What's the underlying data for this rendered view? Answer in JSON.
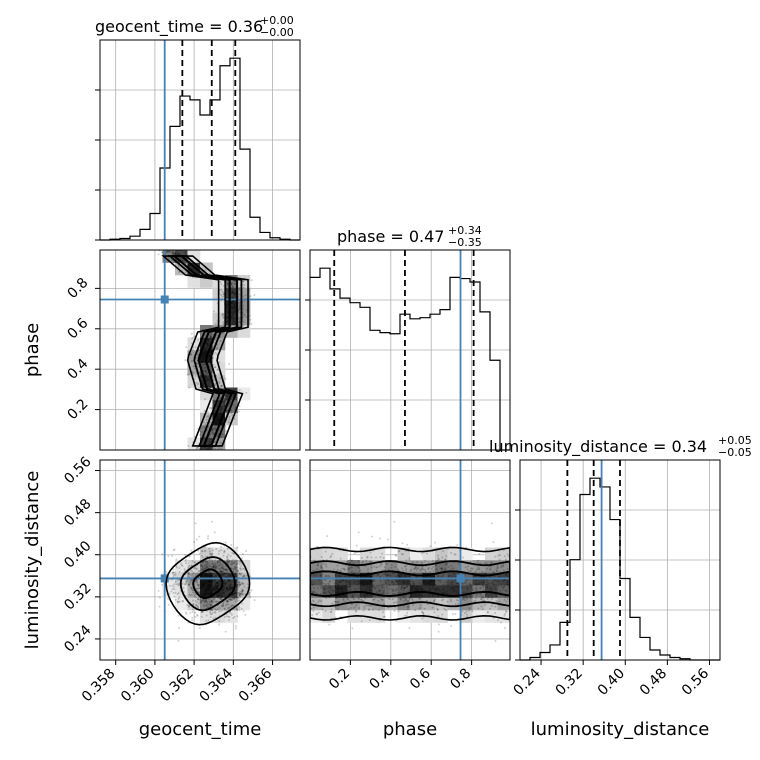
{
  "chart_data": {
    "type": "corner",
    "parameters": [
      "geocent_time",
      "phase",
      "luminosity_distance"
    ],
    "truths": {
      "geocent_time": 0.3605,
      "phase": 0.745,
      "luminosity_distance": 0.355
    },
    "truth_color": "#4682b4",
    "titles": [
      {
        "param": "geocent_time",
        "text": "geocent_time = 0.36",
        "sup": "+0.00",
        "sub": "−0.00"
      },
      {
        "param": "phase",
        "text": "phase = 0.47",
        "sup": "+0.34",
        "sub": "−0.35"
      },
      {
        "param": "luminosity_distance",
        "text": "luminosity_distance = 0.34",
        "sup": "+0.05",
        "sub": "−0.05"
      }
    ],
    "axes": {
      "geocent_time": {
        "range": [
          0.3572,
          0.3674
        ],
        "ticks": [
          "0.358",
          "0.360",
          "0.362",
          "0.364",
          "0.366"
        ],
        "tick_values": [
          0.358,
          0.36,
          0.362,
          0.364,
          0.366
        ],
        "label": "geocent_time"
      },
      "phase": {
        "range": [
          0.0,
          0.99
        ],
        "ticks": [
          "0.2",
          "0.4",
          "0.6",
          "0.8"
        ],
        "tick_values": [
          0.2,
          0.4,
          0.6,
          0.8
        ],
        "label": "phase"
      },
      "luminosity_distance": {
        "range": [
          0.2,
          0.58
        ],
        "ticks": [
          "0.24",
          "0.32",
          "0.40",
          "0.48",
          "0.56"
        ],
        "tick_values": [
          0.24,
          0.32,
          0.4,
          0.48,
          0.56
        ],
        "label": "luminosity_distance"
      }
    },
    "histograms": {
      "geocent_time": {
        "bin_edges": [
          0.3572,
          0.35771,
          0.35822,
          0.35873,
          0.35924,
          0.35975,
          0.36026,
          0.36077,
          0.36128,
          0.36179,
          0.3623,
          0.36281,
          0.36332,
          0.36383,
          0.36434,
          0.36485,
          0.36536,
          0.36587,
          0.36638,
          0.36689,
          0.3674
        ],
        "counts": [
          0,
          1,
          2,
          5,
          14,
          35,
          95,
          150,
          190,
          185,
          165,
          185,
          230,
          240,
          120,
          30,
          10,
          3,
          1,
          0
        ],
        "quantiles": [
          0.3614,
          0.3629,
          0.3641
        ]
      },
      "phase": {
        "bin_edges": [
          0.0,
          0.0495,
          0.099,
          0.1485,
          0.198,
          0.2475,
          0.297,
          0.3465,
          0.396,
          0.4455,
          0.495,
          0.5445,
          0.594,
          0.6435,
          0.693,
          0.7425,
          0.792,
          0.8415,
          0.891,
          0.9405,
          0.99
        ],
        "counts": [
          150,
          158,
          140,
          132,
          128,
          124,
          104,
          102,
          101,
          118,
          114,
          115,
          118,
          122,
          150,
          149,
          146,
          120,
          78,
          0
        ],
        "quantiles": [
          0.12,
          0.47,
          0.81
        ]
      },
      "luminosity_distance": {
        "bin_edges": [
          0.2,
          0.219,
          0.238,
          0.257,
          0.276,
          0.295,
          0.314,
          0.333,
          0.352,
          0.371,
          0.39,
          0.409,
          0.428,
          0.447,
          0.466,
          0.485,
          0.504,
          0.523,
          0.542,
          0.561,
          0.58
        ],
        "counts": [
          0,
          2,
          6,
          12,
          30,
          80,
          132,
          145,
          138,
          112,
          65,
          34,
          18,
          8,
          4,
          2,
          1,
          0,
          0,
          0
        ],
        "quantiles": [
          0.29,
          0.34,
          0.39
        ]
      }
    },
    "scatter_1d_density": "2D histograms with 1-3 sigma contours; grey scatter of samples",
    "grid": true
  }
}
